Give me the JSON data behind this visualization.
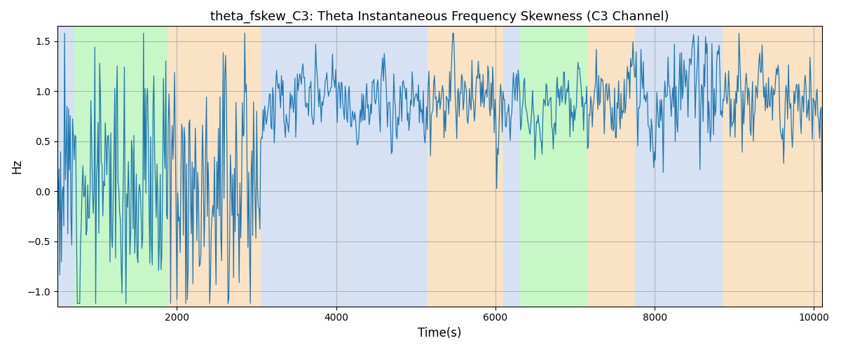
{
  "title": "theta_fskew_C3: Theta Instantaneous Frequency Skewness (C3 Channel)",
  "xlabel": "Time(s)",
  "ylabel": "Hz",
  "xlim": [
    500,
    10100
  ],
  "ylim": [
    -1.15,
    1.65
  ],
  "yticks": [
    -1.0,
    -0.5,
    0.0,
    0.5,
    1.0,
    1.5
  ],
  "xticks": [
    2000,
    4000,
    6000,
    8000,
    10000
  ],
  "line_color": "#1f77b4",
  "line_width": 0.9,
  "bg_color": "#ffffff",
  "grid_color": "#b0b0b0",
  "bg_regions": [
    {
      "xmin": 500,
      "xmax": 710,
      "color": "#aec6e8",
      "alpha": 0.5
    },
    {
      "xmin": 710,
      "xmax": 1880,
      "color": "#90ee90",
      "alpha": 0.5
    },
    {
      "xmin": 1880,
      "xmax": 3050,
      "color": "#f5c98a",
      "alpha": 0.5
    },
    {
      "xmin": 3050,
      "xmax": 3500,
      "color": "#aec6e8",
      "alpha": 0.5
    },
    {
      "xmin": 3500,
      "xmax": 5150,
      "color": "#aec6e8",
      "alpha": 0.5
    },
    {
      "xmin": 5150,
      "xmax": 5850,
      "color": "#f5c98a",
      "alpha": 0.5
    },
    {
      "xmin": 5850,
      "xmax": 6100,
      "color": "#f5c98a",
      "alpha": 0.5
    },
    {
      "xmin": 6100,
      "xmax": 6310,
      "color": "#aec6e8",
      "alpha": 0.5
    },
    {
      "xmin": 6310,
      "xmax": 7150,
      "color": "#90ee90",
      "alpha": 0.5
    },
    {
      "xmin": 7150,
      "xmax": 7750,
      "color": "#f5c98a",
      "alpha": 0.5
    },
    {
      "xmin": 7750,
      "xmax": 8850,
      "color": "#aec6e8",
      "alpha": 0.5
    },
    {
      "xmin": 8850,
      "xmax": 10100,
      "color": "#f5c98a",
      "alpha": 0.5
    }
  ],
  "segments": [
    {
      "tstart": 500,
      "tend": 1880,
      "mean": 0.15,
      "std": 0.6,
      "high_freq": true
    },
    {
      "tstart": 1880,
      "tend": 3050,
      "mean": 0.2,
      "std": 0.65,
      "high_freq": true
    },
    {
      "tstart": 3050,
      "tend": 5150,
      "mean": 0.88,
      "std": 0.22,
      "high_freq": false
    },
    {
      "tstart": 5150,
      "tend": 6100,
      "mean": 0.9,
      "std": 0.25,
      "high_freq": false
    },
    {
      "tstart": 6100,
      "tend": 6310,
      "mean": 0.9,
      "std": 0.2,
      "high_freq": false
    },
    {
      "tstart": 6310,
      "tend": 7150,
      "mean": 0.85,
      "std": 0.18,
      "high_freq": false
    },
    {
      "tstart": 7150,
      "tend": 7750,
      "mean": 0.88,
      "std": 0.25,
      "high_freq": false
    },
    {
      "tstart": 7750,
      "tend": 8850,
      "mean": 0.88,
      "std": 0.3,
      "high_freq": false
    },
    {
      "tstart": 8850,
      "tend": 10100,
      "mean": 0.9,
      "std": 0.25,
      "high_freq": false
    }
  ],
  "n_points": 960,
  "seed": 12
}
